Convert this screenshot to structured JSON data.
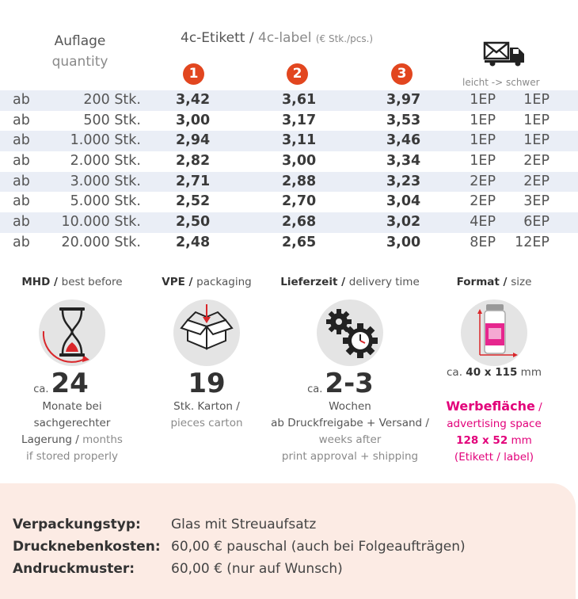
{
  "header": {
    "quantity_de": "Auflage",
    "quantity_en": "quantity",
    "label_de": "4c-Etikett",
    "label_sep": " / ",
    "label_en": "4c-label",
    "label_unit": "(€ Stk./pcs.)",
    "variants": [
      "1",
      "2",
      "3"
    ],
    "shipping_icon": "truck-mail-icon",
    "weight_hint": "leicht -> schwer"
  },
  "colors": {
    "badge": "#e2461f",
    "row_shade": "#eaeef6",
    "accent_pink": "#e2007a",
    "info_bg": "#fcebe4"
  },
  "rows": [
    {
      "ab": "ab",
      "qty": "200 Stk.",
      "p1": "3,42",
      "p2": "3,61",
      "p3": "3,97",
      "s1": "1EP",
      "s2": "1EP"
    },
    {
      "ab": "ab",
      "qty": "500 Stk.",
      "p1": "3,00",
      "p2": "3,17",
      "p3": "3,53",
      "s1": "1EP",
      "s2": "1EP"
    },
    {
      "ab": "ab",
      "qty": "1.000 Stk.",
      "p1": "2,94",
      "p2": "3,11",
      "p3": "3,46",
      "s1": "1EP",
      "s2": "1EP"
    },
    {
      "ab": "ab",
      "qty": "2.000 Stk.",
      "p1": "2,82",
      "p2": "3,00",
      "p3": "3,34",
      "s1": "1EP",
      "s2": "2EP"
    },
    {
      "ab": "ab",
      "qty": "3.000 Stk.",
      "p1": "2,71",
      "p2": "2,88",
      "p3": "3,23",
      "s1": "2EP",
      "s2": "2EP"
    },
    {
      "ab": "ab",
      "qty": "5.000 Stk.",
      "p1": "2,52",
      "p2": "2,70",
      "p3": "3,04",
      "s1": "2EP",
      "s2": "3EP"
    },
    {
      "ab": "ab",
      "qty": "10.000 Stk.",
      "p1": "2,50",
      "p2": "2,68",
      "p3": "3,02",
      "s1": "4EP",
      "s2": "6EP"
    },
    {
      "ab": "ab",
      "qty": "20.000 Stk.",
      "p1": "2,48",
      "p2": "2,65",
      "p3": "3,00",
      "s1": "8EP",
      "s2": "12EP"
    }
  ],
  "features": {
    "mhd": {
      "title_de": "MHD",
      "title_en": "best before",
      "icon": "hourglass-icon",
      "ca": "ca.",
      "value": "24",
      "line1": "Monate bei",
      "line2": "sachgerechter",
      "line3_de": "Lagerung",
      "line3_en": "months",
      "line4_en": "if stored properly"
    },
    "vpe": {
      "title_de": "VPE",
      "title_en": "packaging",
      "icon": "box-icon",
      "value": "19",
      "line1_de": "Stk. Karton /",
      "line2_en": "pieces carton"
    },
    "delivery": {
      "title_de": "Lieferzeit",
      "title_en": "delivery time",
      "icon": "gears-clock-icon",
      "ca": "ca.",
      "value": "2-3",
      "line1": "Wochen",
      "line2": "ab Druckfreigabe + Versand /",
      "line3_en": "weeks after",
      "line4_en": "print approval + shipping"
    },
    "format": {
      "title_de": "Format",
      "title_en": "size",
      "icon": "jar-dimensions-icon",
      "ca": "ca.",
      "size": "40 x 115",
      "size_unit": "mm",
      "adv_de": "Werbefläche",
      "adv_en": "advertising space",
      "adv_size": "128 x 52",
      "adv_unit": "mm",
      "adv_note": "(Etikett / label)"
    }
  },
  "info": {
    "packaging_type_label": "Verpackungstyp:",
    "packaging_type_value": "Glas mit Streuaufsatz",
    "print_costs_label": "Drucknebenkosten:",
    "print_costs_value": "60,00 € pauschal (auch bei Folgeaufträgen)",
    "proof_label": "Andruckmuster:",
    "proof_value": "60,00 € (nur auf Wunsch)"
  }
}
